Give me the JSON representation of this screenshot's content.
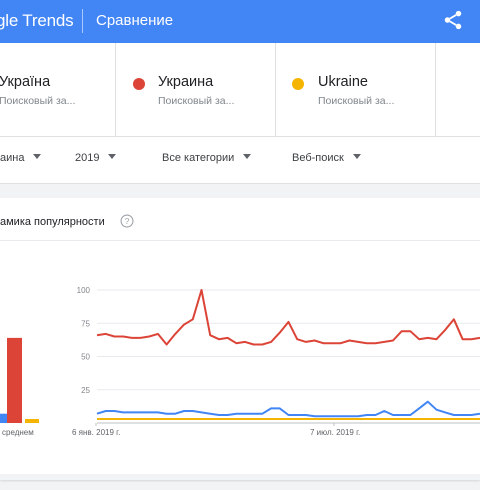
{
  "header": {
    "logo_text": "gle Trends",
    "title": "Сравнение",
    "share_icon": "share-icon",
    "bg_color": "#4285f4"
  },
  "terms": [
    {
      "name": "Україна",
      "subtitle": "Поисковый за...",
      "color": "#4285f4"
    },
    {
      "name": "Украина",
      "subtitle": "Поисковый за...",
      "color": "#db4437"
    },
    {
      "name": "Ukraine",
      "subtitle": "Поисковый за...",
      "color": "#f4b400"
    }
  ],
  "filters": {
    "region": "аина",
    "year": "2019",
    "category": "Все категории",
    "search_type": "Веб-поиск"
  },
  "section": {
    "title": "амика популярности",
    "help_icon": "help-circle-icon",
    "average_label": "среднем"
  },
  "chart_data": {
    "type": "line",
    "y_ticks": [
      "100",
      "75",
      "50",
      "25"
    ],
    "ylim": [
      0,
      100
    ],
    "x_tick_labels": [
      "6 янв. 2019 г.",
      "7 июл. 2019 г."
    ],
    "grid": true,
    "series": [
      {
        "name": "Україна",
        "color": "#4285f4",
        "values": [
          7,
          9,
          9,
          8,
          8,
          8,
          8,
          8,
          7,
          7,
          9,
          9,
          8,
          7,
          6,
          6,
          7,
          7,
          7,
          7,
          11,
          11,
          6,
          6,
          6,
          5,
          5,
          5,
          5,
          5,
          5,
          6,
          6,
          9,
          6,
          6,
          6,
          11,
          16,
          10,
          8,
          6,
          6,
          6,
          7
        ]
      },
      {
        "name": "Украина",
        "color": "#db4437",
        "values": [
          66,
          67,
          65,
          65,
          64,
          64,
          65,
          67,
          59,
          67,
          74,
          78,
          100,
          66,
          63,
          64,
          60,
          61,
          59,
          59,
          61,
          68,
          76,
          63,
          61,
          62,
          60,
          60,
          60,
          62,
          61,
          60,
          60,
          61,
          62,
          69,
          69,
          63,
          64,
          63,
          70,
          78,
          63,
          63,
          64
        ]
      },
      {
        "name": "Ukraine",
        "color": "#f4b400",
        "values": [
          3,
          3,
          3,
          3,
          3,
          3,
          3,
          3,
          3,
          3,
          3,
          3,
          3,
          3,
          3,
          3,
          3,
          3,
          3,
          3,
          3,
          3,
          3,
          3,
          3,
          3,
          3,
          3,
          3,
          3,
          3,
          3,
          3,
          3,
          3,
          3,
          3,
          3,
          3,
          3,
          3,
          3,
          3,
          3,
          3
        ]
      }
    ],
    "averages": [
      {
        "name": "Україна",
        "value": 7,
        "color": "#4285f4"
      },
      {
        "name": "Украина",
        "value": 64,
        "color": "#db4437"
      },
      {
        "name": "Ukraine",
        "value": 3,
        "color": "#f4b400"
      }
    ]
  }
}
